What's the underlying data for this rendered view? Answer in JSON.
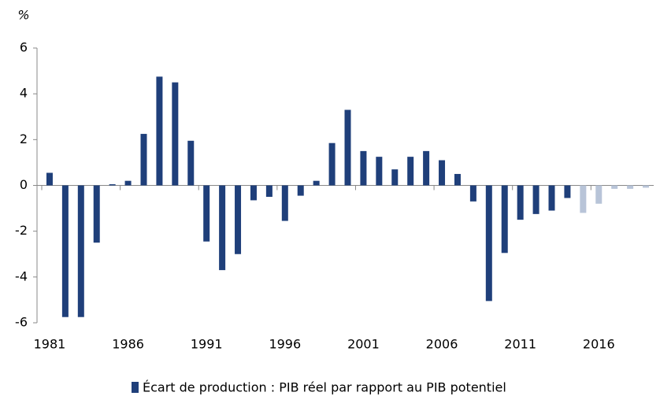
{
  "chart_data": {
    "type": "bar",
    "y_label": "%",
    "categories": [
      "1981",
      null,
      null,
      null,
      null,
      "1986",
      null,
      null,
      null,
      null,
      "1991",
      null,
      null,
      null,
      null,
      "1996",
      null,
      null,
      null,
      null,
      "2001",
      null,
      null,
      null,
      null,
      "2006",
      null,
      null,
      null,
      null,
      "2011",
      null,
      null,
      null,
      null,
      "2016",
      null,
      null,
      null
    ],
    "series": [
      {
        "name": "Écart de production : PIB réel par rapport au PIB potentiel",
        "color": "#1f3f7a",
        "values": [
          0.55,
          -5.75,
          -5.75,
          -2.5,
          0.05,
          0.2,
          2.25,
          4.75,
          4.5,
          1.95,
          -2.45,
          -3.7,
          -3.0,
          -0.65,
          -0.5,
          -1.55,
          -0.45,
          0.2,
          1.85,
          3.3,
          1.5,
          1.25,
          0.7,
          1.25,
          1.5,
          1.1,
          0.5,
          -0.7,
          -5.05,
          -2.95,
          -1.5,
          -1.25,
          -1.1,
          -0.55,
          -1.2,
          -0.8,
          -0.15,
          -0.15,
          -0.1
        ],
        "colors": [
          "#1f3f7a",
          "#1f3f7a",
          "#1f3f7a",
          "#1f3f7a",
          "#1f3f7a",
          "#1f3f7a",
          "#1f3f7a",
          "#1f3f7a",
          "#1f3f7a",
          "#1f3f7a",
          "#1f3f7a",
          "#1f3f7a",
          "#1f3f7a",
          "#1f3f7a",
          "#1f3f7a",
          "#1f3f7a",
          "#1f3f7a",
          "#1f3f7a",
          "#1f3f7a",
          "#1f3f7a",
          "#1f3f7a",
          "#1f3f7a",
          "#1f3f7a",
          "#1f3f7a",
          "#1f3f7a",
          "#1f3f7a",
          "#1f3f7a",
          "#1f3f7a",
          "#1f3f7a",
          "#1f3f7a",
          "#1f3f7a",
          "#1f3f7a",
          "#1f3f7a",
          "#1f3f7a",
          "#b8c4d8",
          "#b8c4d8",
          "#b8c4d8",
          "#b8c4d8",
          "#b8c4d8"
        ]
      }
    ],
    "ylim": [
      -6,
      6
    ],
    "yticks": [
      -6,
      -4,
      -2,
      0,
      2,
      4,
      6
    ],
    "grid": false,
    "legend": "bottom"
  }
}
